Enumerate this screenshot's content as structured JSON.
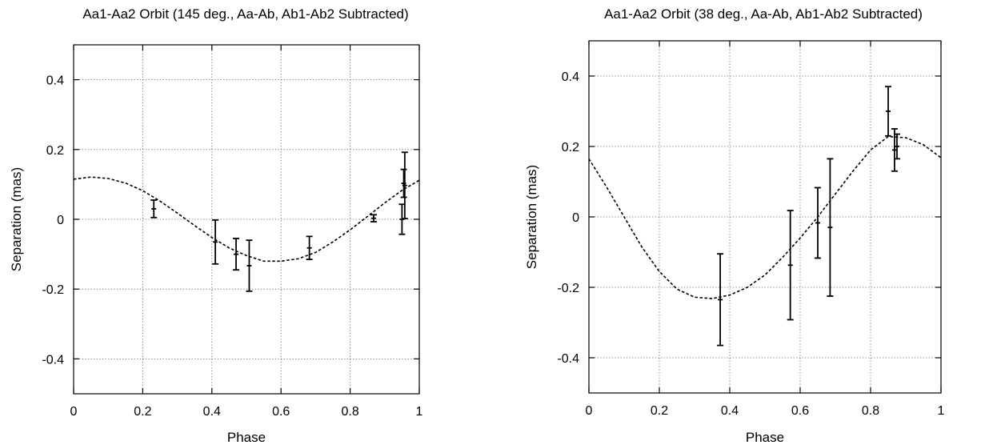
{
  "chart_data": [
    {
      "type": "scatter",
      "title": "Aa1-Aa2 Orbit (145 deg., Aa-Ab, Ab1-Ab2 Subtracted)",
      "xlabel": "Phase",
      "ylabel": "Separation (mas)",
      "xlim": [
        0,
        1
      ],
      "ylim": [
        -0.5,
        0.5
      ],
      "xticks": [
        0,
        0.2,
        0.4,
        0.6,
        0.8,
        1
      ],
      "xtick_labels": [
        "0",
        "0.2",
        "0.4",
        "0.6",
        "0.8",
        "1"
      ],
      "yticks": [
        -0.4,
        -0.2,
        0,
        0.2,
        0.4
      ],
      "ytick_labels": [
        "-0.4",
        "-0.2",
        "0",
        "0.2",
        "0.4"
      ],
      "grid": true,
      "series": [
        {
          "kind": "errorbar",
          "points": [
            {
              "x": 0.232,
              "y": 0.03,
              "err": 0.025
            },
            {
              "x": 0.41,
              "y": -0.065,
              "err": 0.063
            },
            {
              "x": 0.47,
              "y": -0.1,
              "err": 0.045
            },
            {
              "x": 0.508,
              "y": -0.133,
              "err": 0.073
            },
            {
              "x": 0.682,
              "y": -0.082,
              "err": 0.033
            },
            {
              "x": 0.868,
              "y": 0.003,
              "err": 0.01
            },
            {
              "x": 0.95,
              "y": 0.0,
              "err": 0.043
            },
            {
              "x": 0.955,
              "y": 0.103,
              "err": 0.04
            },
            {
              "x": 0.958,
              "y": 0.097,
              "err": 0.095
            }
          ]
        },
        {
          "kind": "model-curve",
          "style": "dashed",
          "x": [
            0,
            0.05,
            0.1,
            0.15,
            0.2,
            0.25,
            0.3,
            0.35,
            0.4,
            0.45,
            0.5,
            0.55,
            0.6,
            0.65,
            0.7,
            0.75,
            0.8,
            0.85,
            0.9,
            0.95,
            1
          ],
          "y": [
            0.115,
            0.121,
            0.117,
            0.104,
            0.082,
            0.052,
            0.018,
            -0.018,
            -0.052,
            -0.082,
            -0.104,
            -0.12,
            -0.12,
            -0.113,
            -0.095,
            -0.065,
            -0.03,
            0.008,
            0.047,
            0.083,
            0.112
          ]
        }
      ]
    },
    {
      "type": "scatter",
      "title": "Aa1-Aa2 Orbit (38 deg., Aa-Ab, Ab1-Ab2 Subtracted)",
      "xlabel": "Phase",
      "ylabel": "Separation (mas)",
      "xlim": [
        0,
        1
      ],
      "ylim": [
        -0.5,
        0.5
      ],
      "xticks": [
        0,
        0.2,
        0.4,
        0.6,
        0.8,
        1
      ],
      "xtick_labels": [
        "0",
        "0.2",
        "0.4",
        "0.6",
        "0.8",
        "1"
      ],
      "yticks": [
        -0.4,
        -0.2,
        0,
        0.2,
        0.4
      ],
      "ytick_labels": [
        "-0.4",
        "-0.2",
        "0",
        "0.2",
        "0.4"
      ],
      "grid": true,
      "series": [
        {
          "kind": "errorbar",
          "points": [
            {
              "x": 0.373,
              "y": -0.235,
              "err": 0.13
            },
            {
              "x": 0.572,
              "y": -0.137,
              "err": 0.155
            },
            {
              "x": 0.65,
              "y": -0.017,
              "err": 0.1
            },
            {
              "x": 0.685,
              "y": -0.03,
              "err": 0.195
            },
            {
              "x": 0.85,
              "y": 0.3,
              "err": 0.07
            },
            {
              "x": 0.868,
              "y": 0.19,
              "err": 0.06
            },
            {
              "x": 0.875,
              "y": 0.2,
              "err": 0.035
            }
          ]
        },
        {
          "kind": "model-curve",
          "style": "dashed",
          "x": [
            0,
            0.05,
            0.1,
            0.15,
            0.2,
            0.25,
            0.3,
            0.35,
            0.4,
            0.45,
            0.5,
            0.55,
            0.6,
            0.65,
            0.7,
            0.75,
            0.8,
            0.85,
            0.9,
            0.95,
            1
          ],
          "y": [
            0.165,
            0.085,
            0.0,
            -0.085,
            -0.155,
            -0.205,
            -0.228,
            -0.232,
            -0.222,
            -0.2,
            -0.165,
            -0.115,
            -0.06,
            0.0,
            0.065,
            0.13,
            0.19,
            0.228,
            0.225,
            0.205,
            0.168
          ]
        }
      ]
    }
  ]
}
